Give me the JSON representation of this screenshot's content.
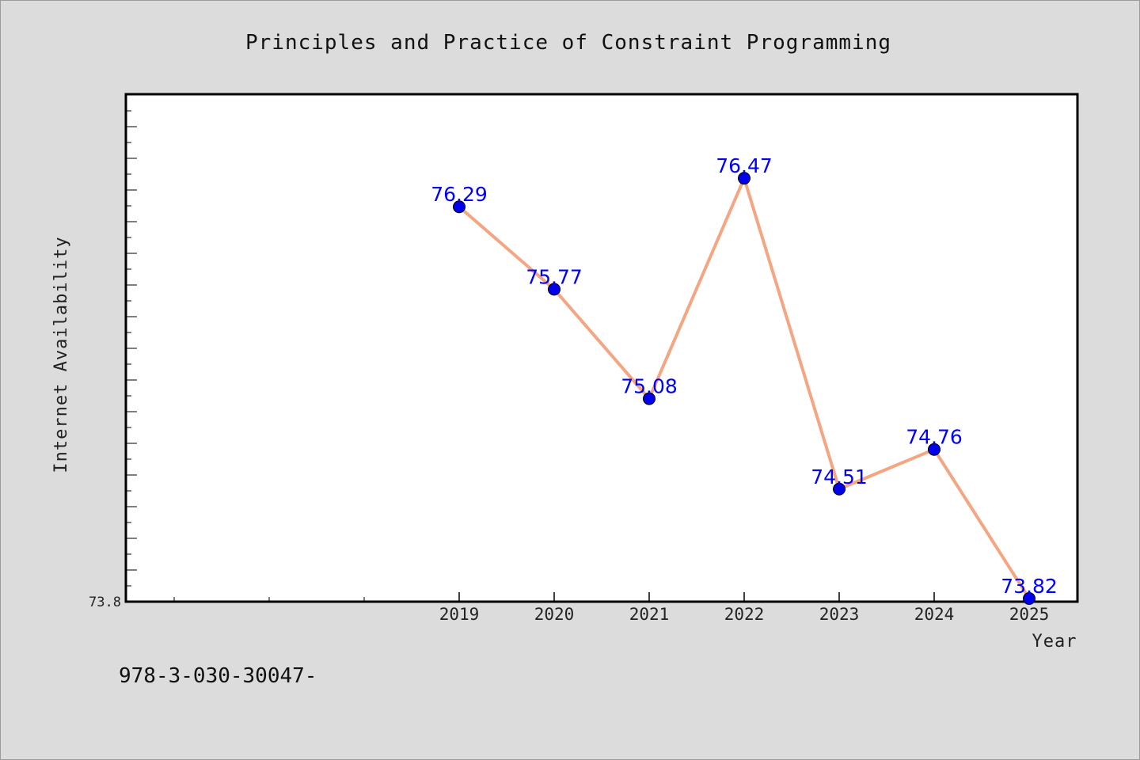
{
  "chart_data": {
    "type": "line",
    "title": "Principles and Practice of Constraint Programming",
    "xlabel": "Year",
    "ylabel": "Internet Availability",
    "categories": [
      "2019",
      "2020",
      "2021",
      "2022",
      "2023",
      "2024",
      "2025"
    ],
    "series": [
      {
        "values": [
          76.29,
          75.77,
          75.08,
          76.47,
          74.51,
          74.76,
          73.82
        ],
        "data_labels": [
          "76.29",
          "75.77",
          "75.08",
          "76.47",
          "74.51",
          "74.76",
          "73.82"
        ]
      }
    ],
    "ylim": [
      73.8,
      77.0
    ],
    "y_tick_labels": [
      "73.8"
    ],
    "grid": false,
    "colors": {
      "line": "#f4a582",
      "marker": "#0000ee",
      "label": "#0000ff"
    }
  },
  "footer": {
    "text": "978-3-030-30047-"
  }
}
